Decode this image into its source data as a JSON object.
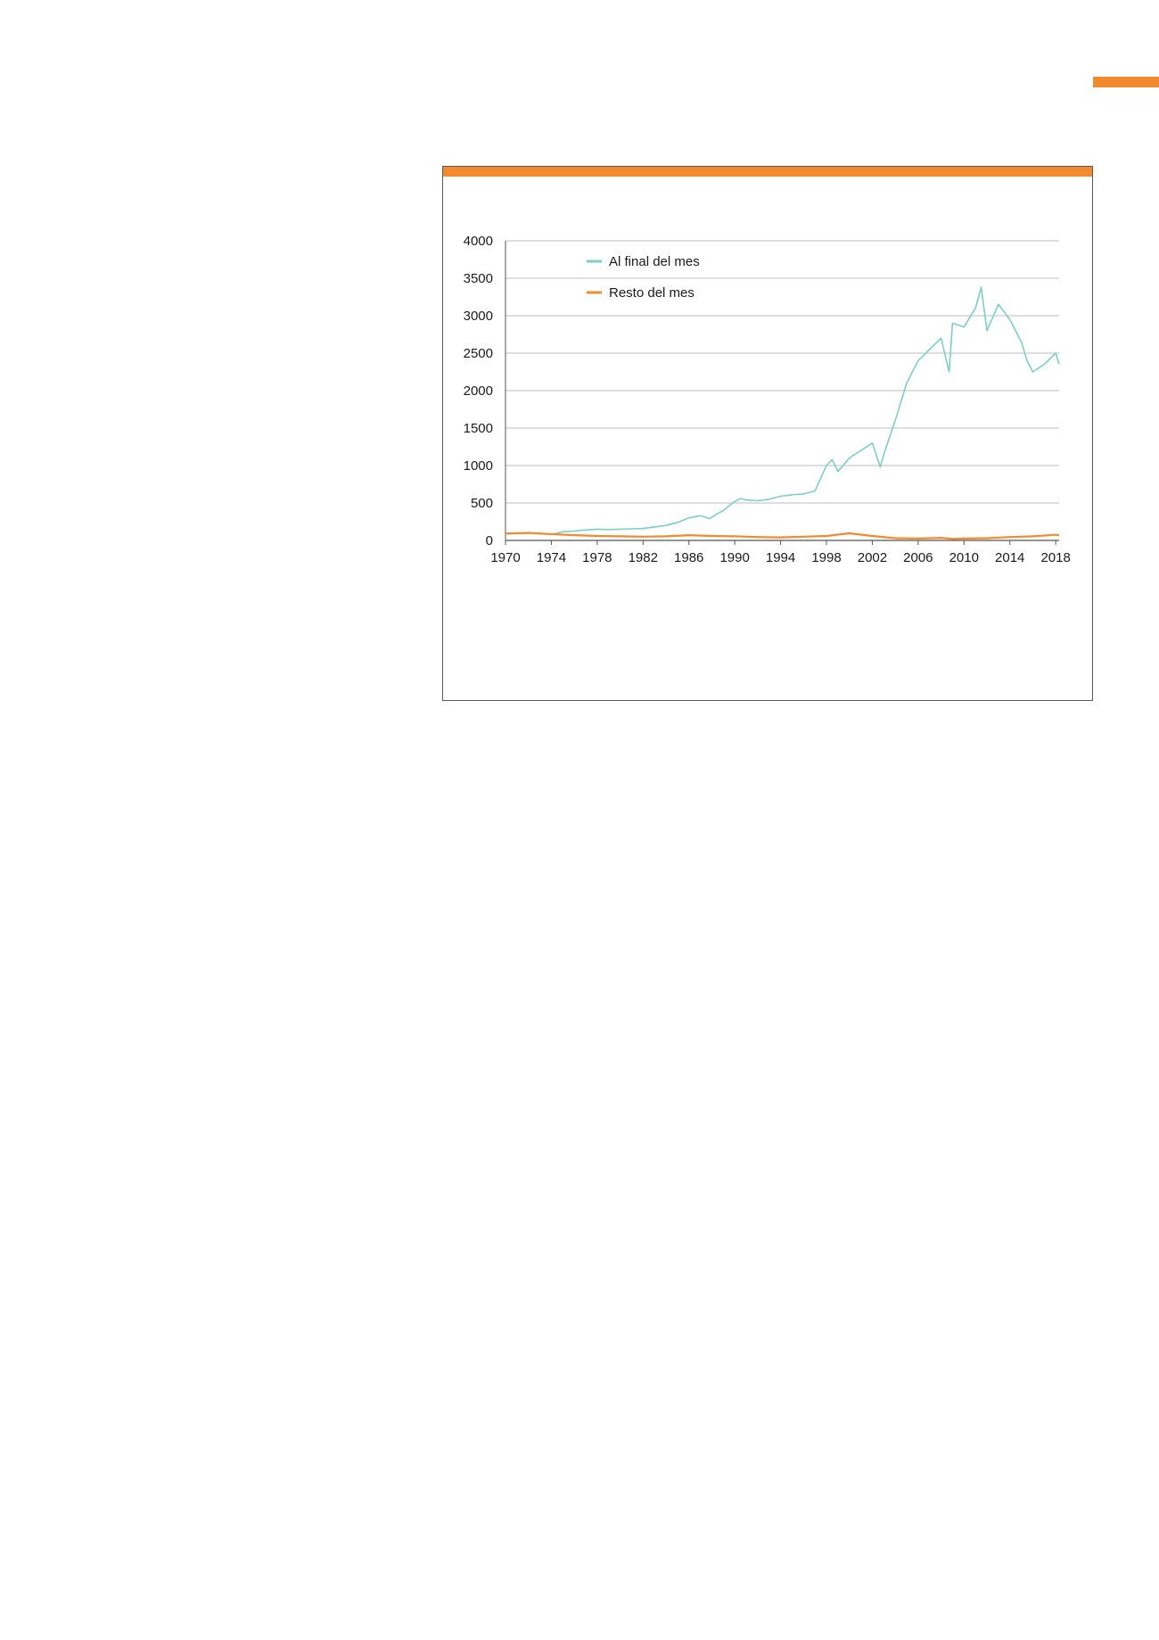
{
  "colors": {
    "accent": "#f28a30",
    "series_final": "#7dcfc4",
    "series_resto": "#f28a30",
    "grid": "#bdbdbd"
  },
  "chart_data": {
    "type": "line",
    "title": "",
    "xlabel": "",
    "ylabel": "",
    "xlim": [
      1970,
      2018.3
    ],
    "ylim": [
      0,
      4000
    ],
    "xticks": [
      1970,
      1974,
      1978,
      1982,
      1986,
      1990,
      1994,
      1998,
      2002,
      2006,
      2010,
      2014,
      2018
    ],
    "yticks": [
      0,
      500,
      1000,
      1500,
      2000,
      2500,
      3000,
      3500,
      4000
    ],
    "grid": true,
    "legend_position": "top-left",
    "series": [
      {
        "name": "Al final del mes",
        "color": "#7dcfc4",
        "x": [
          1970,
          1971,
          1972,
          1973,
          1974,
          1975,
          1976,
          1977,
          1978,
          1979,
          1980,
          1981,
          1982,
          1983,
          1984,
          1985,
          1986,
          1987,
          1987.8,
          1988.5,
          1989,
          1990,
          1990.5,
          1991,
          1992,
          1993,
          1994,
          1995,
          1996,
          1997,
          1998,
          1998.5,
          1999,
          2000,
          2001,
          2002,
          2002.7,
          2003,
          2004,
          2005,
          2006,
          2007,
          2008,
          2008.7,
          2009,
          2010,
          2011,
          2011.5,
          2012,
          2013,
          2014,
          2015,
          2015.5,
          2016,
          2017,
          2018,
          2018.3
        ],
        "values": [
          100,
          95,
          105,
          90,
          80,
          115,
          125,
          140,
          150,
          145,
          150,
          155,
          160,
          180,
          200,
          240,
          300,
          330,
          290,
          360,
          400,
          520,
          560,
          540,
          530,
          550,
          590,
          610,
          620,
          660,
          1000,
          1080,
          920,
          1100,
          1200,
          1300,
          980,
          1150,
          1600,
          2100,
          2400,
          2550,
          2700,
          2250,
          2900,
          2850,
          3100,
          3380,
          2800,
          3150,
          2950,
          2650,
          2400,
          2250,
          2350,
          2500,
          2350
        ]
      },
      {
        "name": "Resto del mes",
        "color": "#f28a30",
        "x": [
          1970,
          1972,
          1974,
          1976,
          1978,
          1980,
          1982,
          1984,
          1986,
          1988,
          1990,
          1992,
          1994,
          1996,
          1998,
          2000,
          2002,
          2004,
          2006,
          2008,
          2009,
          2010,
          2012,
          2014,
          2016,
          2018,
          2018.3
        ],
        "values": [
          90,
          100,
          85,
          70,
          60,
          55,
          50,
          55,
          70,
          60,
          55,
          45,
          40,
          50,
          60,
          95,
          60,
          30,
          25,
          35,
          20,
          25,
          30,
          45,
          55,
          75,
          70
        ]
      }
    ]
  }
}
